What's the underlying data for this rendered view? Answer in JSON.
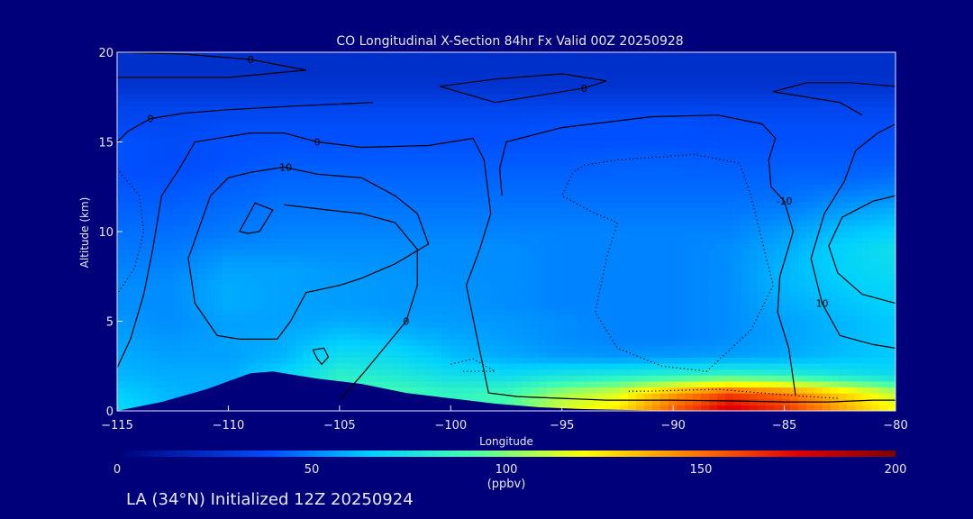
{
  "chart_data": {
    "type": "heatmap",
    "title": "CO Longitudinal X-Section 84hr  Fx Valid 00Z 20250928",
    "xlabel": "Longitude",
    "ylabel": "Altitude (km)",
    "xlim": [
      -115,
      -80
    ],
    "ylim": [
      0,
      20
    ],
    "x_ticks": [
      "-115",
      "-110",
      "-105",
      "-100",
      "-95",
      "-90",
      "-85",
      "-80"
    ],
    "y_ticks": [
      "0",
      "5",
      "10",
      "15",
      "20"
    ],
    "colorbar": {
      "min": 0,
      "max": 200,
      "ticks": [
        "0",
        "50",
        "100",
        "150",
        "200"
      ],
      "label": "(ppbv)",
      "stops": [
        {
          "v": 0,
          "c": "#00007a"
        },
        {
          "v": 40,
          "c": "#0050ff"
        },
        {
          "v": 65,
          "c": "#00d0ff"
        },
        {
          "v": 90,
          "c": "#40ffb0"
        },
        {
          "v": 120,
          "c": "#ffff00"
        },
        {
          "v": 150,
          "c": "#ff7000"
        },
        {
          "v": 175,
          "c": "#e00000"
        },
        {
          "v": 200,
          "c": "#800000"
        }
      ]
    },
    "lon": [
      -115,
      -112.5,
      -110,
      -107.5,
      -105,
      -102.5,
      -100,
      -97.5,
      -95,
      -92.5,
      -90,
      -87.5,
      -85,
      -82.5,
      -80
    ],
    "alt": [
      0,
      1,
      2,
      3,
      4,
      5,
      6,
      7,
      8,
      9,
      10,
      11,
      12,
      13,
      14,
      15,
      16,
      17,
      18,
      19,
      20
    ],
    "co_ppbv": [
      [
        70,
        60,
        55,
        70,
        85,
        90,
        85,
        92,
        115,
        125,
        155,
        180,
        165,
        140,
        120
      ],
      [
        65,
        60,
        58,
        72,
        88,
        90,
        84,
        88,
        105,
        115,
        140,
        160,
        150,
        130,
        110
      ],
      [
        60,
        58,
        58,
        68,
        82,
        78,
        72,
        70,
        75,
        78,
        82,
        85,
        82,
        75,
        70
      ],
      [
        58,
        56,
        56,
        60,
        72,
        70,
        62,
        58,
        55,
        54,
        55,
        56,
        58,
        62,
        64
      ],
      [
        56,
        54,
        56,
        58,
        64,
        62,
        58,
        55,
        52,
        50,
        50,
        52,
        56,
        60,
        64
      ],
      [
        54,
        52,
        56,
        56,
        58,
        56,
        55,
        54,
        52,
        50,
        50,
        52,
        56,
        60,
        64
      ],
      [
        52,
        52,
        58,
        56,
        55,
        54,
        54,
        52,
        50,
        50,
        50,
        52,
        58,
        62,
        66
      ],
      [
        52,
        52,
        58,
        56,
        55,
        54,
        53,
        52,
        50,
        50,
        50,
        52,
        60,
        64,
        68
      ],
      [
        50,
        50,
        56,
        56,
        54,
        53,
        52,
        52,
        50,
        50,
        50,
        52,
        60,
        66,
        70
      ],
      [
        48,
        48,
        52,
        52,
        52,
        52,
        52,
        52,
        50,
        50,
        50,
        52,
        58,
        66,
        72
      ],
      [
        46,
        46,
        48,
        50,
        50,
        50,
        50,
        50,
        50,
        50,
        50,
        50,
        55,
        62,
        66
      ],
      [
        44,
        44,
        46,
        48,
        48,
        48,
        48,
        48,
        48,
        48,
        48,
        48,
        50,
        56,
        60
      ],
      [
        42,
        42,
        44,
        46,
        46,
        46,
        46,
        46,
        46,
        46,
        46,
        46,
        46,
        50,
        52
      ],
      [
        40,
        40,
        42,
        44,
        44,
        44,
        44,
        44,
        44,
        44,
        44,
        44,
        44,
        44,
        46
      ],
      [
        40,
        38,
        40,
        42,
        42,
        42,
        42,
        42,
        42,
        43,
        43,
        42,
        42,
        42,
        42
      ],
      [
        40,
        38,
        40,
        40,
        40,
        40,
        40,
        40,
        40,
        40,
        40,
        40,
        40,
        40,
        40
      ],
      [
        36,
        36,
        38,
        38,
        38,
        38,
        38,
        38,
        40,
        40,
        40,
        38,
        38,
        38,
        38
      ],
      [
        34,
        34,
        34,
        34,
        34,
        34,
        34,
        34,
        34,
        34,
        34,
        34,
        34,
        34,
        34
      ],
      [
        26,
        26,
        26,
        26,
        26,
        26,
        26,
        26,
        26,
        26,
        26,
        26,
        26,
        26,
        26
      ],
      [
        24,
        24,
        24,
        24,
        24,
        24,
        24,
        24,
        24,
        24,
        24,
        24,
        24,
        24,
        24
      ],
      [
        24,
        24,
        24,
        24,
        24,
        24,
        24,
        24,
        24,
        24,
        24,
        24,
        24,
        24,
        24
      ]
    ],
    "terrain": [
      [
        -115,
        0
      ],
      [
        -113,
        0.5
      ],
      [
        -111,
        1.2
      ],
      [
        -109,
        2.1
      ],
      [
        -108,
        2.2
      ],
      [
        -106,
        1.8
      ],
      [
        -104,
        1.5
      ],
      [
        -102,
        1.0
      ],
      [
        -100,
        0.7
      ],
      [
        -98,
        0.4
      ],
      [
        -96,
        0.2
      ],
      [
        -94,
        0.1
      ],
      [
        -90,
        0.0
      ],
      [
        -80,
        0.0
      ]
    ],
    "contours": [
      {
        "label": "0",
        "style": "solid",
        "points": [
          [
            -115,
            2.4
          ],
          [
            -114.4,
            4.0
          ],
          [
            -113.8,
            6.5
          ],
          [
            -113.4,
            9
          ],
          [
            -113,
            12
          ],
          [
            -112.2,
            13.5
          ],
          [
            -111.5,
            15.0
          ],
          [
            -109,
            15.5
          ],
          [
            -107.5,
            15.5
          ],
          [
            -106,
            15
          ],
          [
            -104,
            14.7
          ],
          [
            -101,
            14.8
          ],
          [
            -99,
            15.2
          ],
          [
            -98.5,
            14
          ],
          [
            -98.3,
            12
          ],
          [
            -98.2,
            11
          ],
          [
            -98.7,
            9
          ],
          [
            -99.3,
            7
          ],
          [
            -98.8,
            4
          ],
          [
            -98.3,
            1
          ],
          [
            -97,
            0.8
          ],
          [
            -95,
            0.7
          ],
          [
            -93,
            0.6
          ],
          [
            -90,
            0.6
          ],
          [
            -87,
            0.55
          ],
          [
            -85,
            0.5
          ],
          [
            -83,
            0.5
          ],
          [
            -81,
            0.6
          ],
          [
            -80,
            0.6
          ]
        ]
      },
      {
        "label": "0",
        "style": "solid",
        "points": [
          [
            -115,
            15.0
          ],
          [
            -114.5,
            15.6
          ],
          [
            -113.5,
            16.3
          ],
          [
            -112,
            16.6
          ],
          [
            -110,
            16.8
          ],
          [
            -107,
            17.0
          ],
          [
            -103.5,
            17.2
          ]
        ]
      },
      {
        "label": "0",
        "style": "solid",
        "points": [
          [
            -98,
            17.2
          ],
          [
            -96,
            17.6
          ],
          [
            -94,
            18.0
          ],
          [
            -93,
            18.4
          ],
          [
            -95,
            18.8
          ],
          [
            -98,
            18.5
          ],
          [
            -100.5,
            18.1
          ],
          [
            -98,
            17.2
          ]
        ]
      },
      {
        "label": "0",
        "style": "solid",
        "points": [
          [
            -115,
            20
          ],
          [
            -112,
            19.9
          ],
          [
            -109,
            19.6
          ],
          [
            -106.5,
            19.0
          ],
          [
            -110,
            18.6
          ],
          [
            -113,
            18.6
          ],
          [
            -115,
            18.6
          ]
        ]
      },
      {
        "label": "-10",
        "style": "solid",
        "points": [
          [
            -110.5,
            4.2
          ],
          [
            -111.5,
            6
          ],
          [
            -111.8,
            8.5
          ],
          [
            -110.8,
            12.0
          ],
          [
            -110,
            13.0
          ],
          [
            -109,
            13.3
          ],
          [
            -107.5,
            13.6
          ],
          [
            -106,
            13.2
          ],
          [
            -104,
            13.0
          ],
          [
            -102.5,
            12.0
          ],
          [
            -101.5,
            11.0
          ],
          [
            -101.0,
            9.3
          ],
          [
            -102.5,
            8.2
          ],
          [
            -104,
            7.4
          ],
          [
            -105,
            7.0
          ],
          [
            -106.5,
            6.6
          ],
          [
            -107.2,
            5.0
          ],
          [
            -107.8,
            4.0
          ],
          [
            -109.5,
            4.0
          ],
          [
            -110.5,
            4.2
          ]
        ]
      },
      {
        "label": "",
        "style": "solid",
        "points": [
          [
            -109.5,
            10.0
          ],
          [
            -108.8,
            11.6
          ],
          [
            -108.0,
            11.2
          ],
          [
            -108.6,
            10.0
          ],
          [
            -109.1,
            9.9
          ],
          [
            -109.5,
            10.0
          ]
        ]
      },
      {
        "label": "",
        "style": "solid",
        "points": [
          [
            -106.2,
            3.4
          ],
          [
            -105.7,
            3.5
          ],
          [
            -105.5,
            3.0
          ],
          [
            -105.8,
            2.6
          ],
          [
            -106.0,
            2.9
          ],
          [
            -106.2,
            3.4
          ]
        ]
      },
      {
        "label": "0",
        "style": "solid",
        "points": [
          [
            -105,
            0.6
          ],
          [
            -104,
            2.0
          ],
          [
            -103,
            3.5
          ],
          [
            -102,
            5
          ],
          [
            -101.5,
            7
          ],
          [
            -101.5,
            9
          ],
          [
            -102.5,
            10.5
          ],
          [
            -104,
            11.0
          ],
          [
            -105.5,
            11.2
          ],
          [
            -107.5,
            11.5
          ],
          [
            -107.5,
            11.5
          ]
        ]
      },
      {
        "label": "-10",
        "style": "solid",
        "points": [
          [
            -84.5,
            0.9
          ],
          [
            -84.8,
            3.5
          ],
          [
            -85.3,
            5.5
          ],
          [
            -85.2,
            7.5
          ],
          [
            -84.6,
            10.0
          ],
          [
            -85.0,
            11.7
          ],
          [
            -85.6,
            12.5
          ],
          [
            -85.7,
            14.0
          ],
          [
            -85.4,
            15.2
          ],
          [
            -86.0,
            16.0
          ],
          [
            -88.0,
            16.5
          ],
          [
            -91.0,
            16.4
          ],
          [
            -95.0,
            15.8
          ],
          [
            -97.5,
            15.0
          ],
          [
            -97.8,
            13.5
          ],
          [
            -97.7,
            12.0
          ]
        ]
      },
      {
        "label": "10",
        "style": "solid",
        "points": [
          [
            -80,
            3.5
          ],
          [
            -81,
            3.7
          ],
          [
            -82.5,
            4.2
          ],
          [
            -83.3,
            6.0
          ],
          [
            -83.8,
            8.5
          ],
          [
            -83.2,
            11.0
          ],
          [
            -82.3,
            12.8
          ],
          [
            -81.8,
            14.5
          ],
          [
            -80.8,
            15.5
          ],
          [
            -80,
            16.0
          ]
        ]
      },
      {
        "label": "",
        "style": "solid",
        "points": [
          [
            -80,
            6.0
          ],
          [
            -81.5,
            6.5
          ],
          [
            -82.6,
            7.7
          ],
          [
            -83.0,
            9.2
          ],
          [
            -82.4,
            10.8
          ],
          [
            -81.0,
            11.7
          ],
          [
            -80,
            12.0
          ]
        ]
      },
      {
        "label": "",
        "style": "solid",
        "points": [
          [
            -80,
            18.1
          ],
          [
            -82,
            18.3
          ],
          [
            -84,
            18.3
          ],
          [
            -85.5,
            17.8
          ],
          [
            -82.5,
            17.2
          ],
          [
            -81.5,
            16.5
          ]
        ]
      },
      {
        "label": "",
        "style": "dotted",
        "points": [
          [
            -115,
            13.5
          ],
          [
            -114.0,
            12.0
          ],
          [
            -113.8,
            10.0
          ],
          [
            -114.2,
            8.0
          ],
          [
            -115,
            6.5
          ]
        ]
      },
      {
        "label": "",
        "style": "dotted",
        "points": [
          [
            -94.0,
            13.7
          ],
          [
            -92.5,
            14.0
          ],
          [
            -89.0,
            14.3
          ],
          [
            -87.0,
            13.8
          ],
          [
            -86.5,
            12.0
          ],
          [
            -86.0,
            9.5
          ],
          [
            -85.5,
            7.0
          ],
          [
            -86.5,
            4.5
          ],
          [
            -88.5,
            2.2
          ],
          [
            -90.5,
            2.5
          ],
          [
            -92.5,
            3.5
          ],
          [
            -93.5,
            5.5
          ],
          [
            -93.0,
            8.5
          ],
          [
            -92.5,
            10.5
          ],
          [
            -93.5,
            11.0
          ],
          [
            -95.0,
            12.0
          ],
          [
            -94.5,
            13.3
          ],
          [
            -94.0,
            13.7
          ]
        ]
      },
      {
        "label": "",
        "style": "dotted",
        "points": [
          [
            -92.0,
            1.1
          ],
          [
            -91.0,
            1.1
          ],
          [
            -88.0,
            1.2
          ],
          [
            -86.0,
            1.0
          ],
          [
            -84.0,
            0.8
          ],
          [
            -82.5,
            0.7
          ]
        ]
      },
      {
        "label": "",
        "style": "dotted",
        "points": [
          [
            -100.0,
            2.6
          ],
          [
            -99.0,
            2.9
          ],
          [
            -98.0,
            2.2
          ],
          [
            -99.5,
            2.2
          ]
        ]
      }
    ],
    "annotation": "LA (34°N) Initialized 12Z 20250924"
  }
}
